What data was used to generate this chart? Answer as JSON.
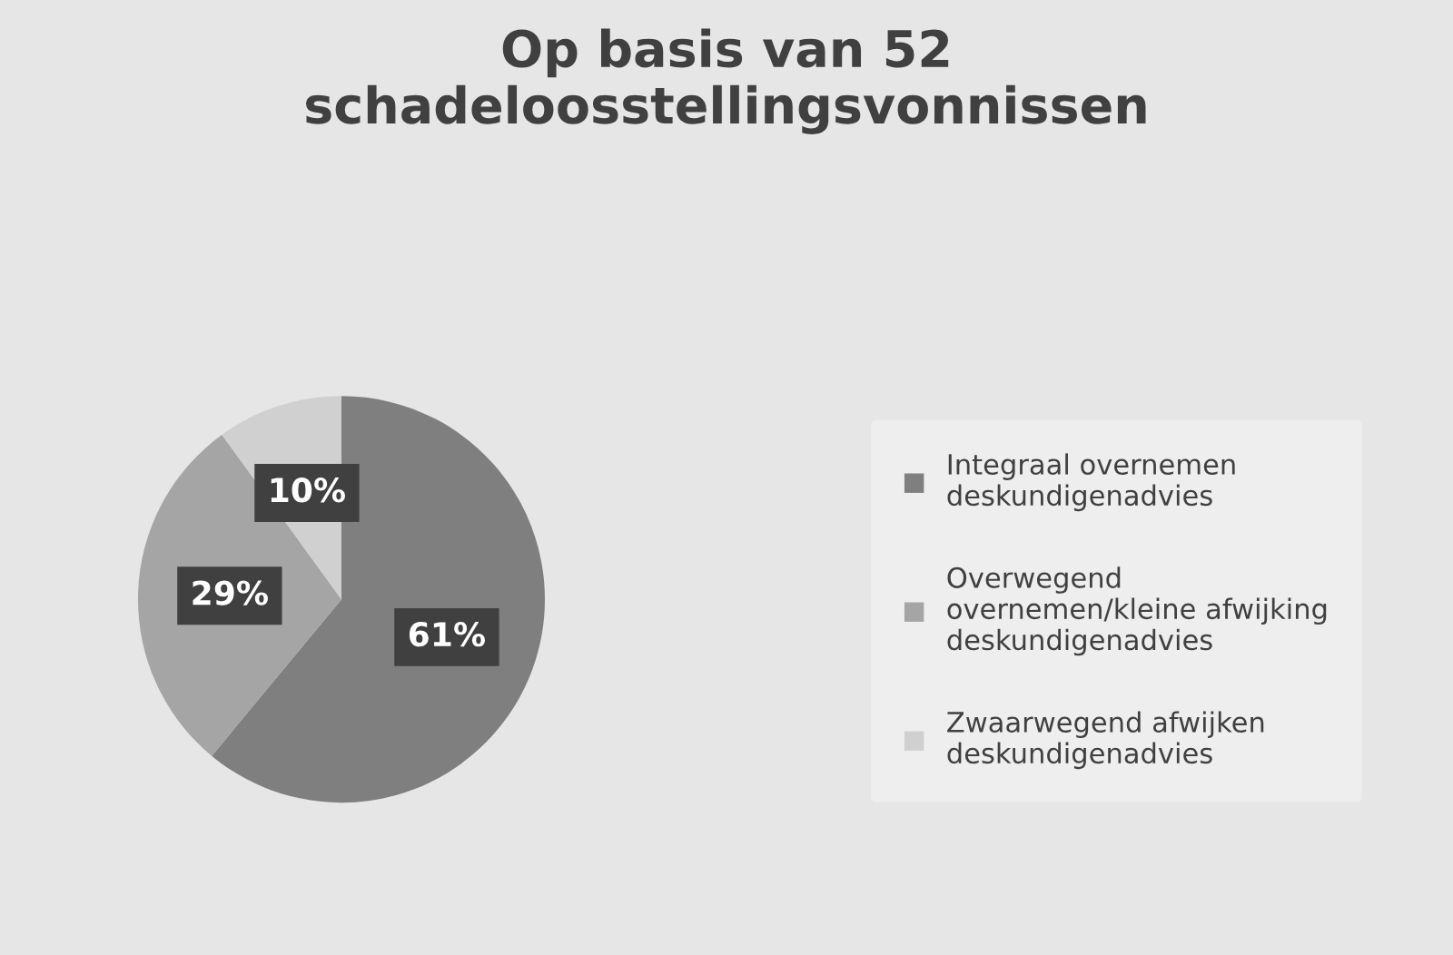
{
  "chart_data": {
    "type": "pie",
    "title": "Op basis van 52\nschadeloosstellingsvonnissen",
    "categories": [
      "Integraal overnemen\ndeskundigenadvies",
      "Overwegend\novernemen/kleine afwijking\ndeskundigenadvies",
      "Zwaarwegend afwijken\ndeskundigenadvies"
    ],
    "values": [
      61,
      29,
      10
    ],
    "colors": [
      "#7f7f7f",
      "#a5a5a5",
      "#d0d0d0"
    ],
    "value_labels": [
      "61%",
      "29%",
      "10%"
    ],
    "legend": "right"
  }
}
